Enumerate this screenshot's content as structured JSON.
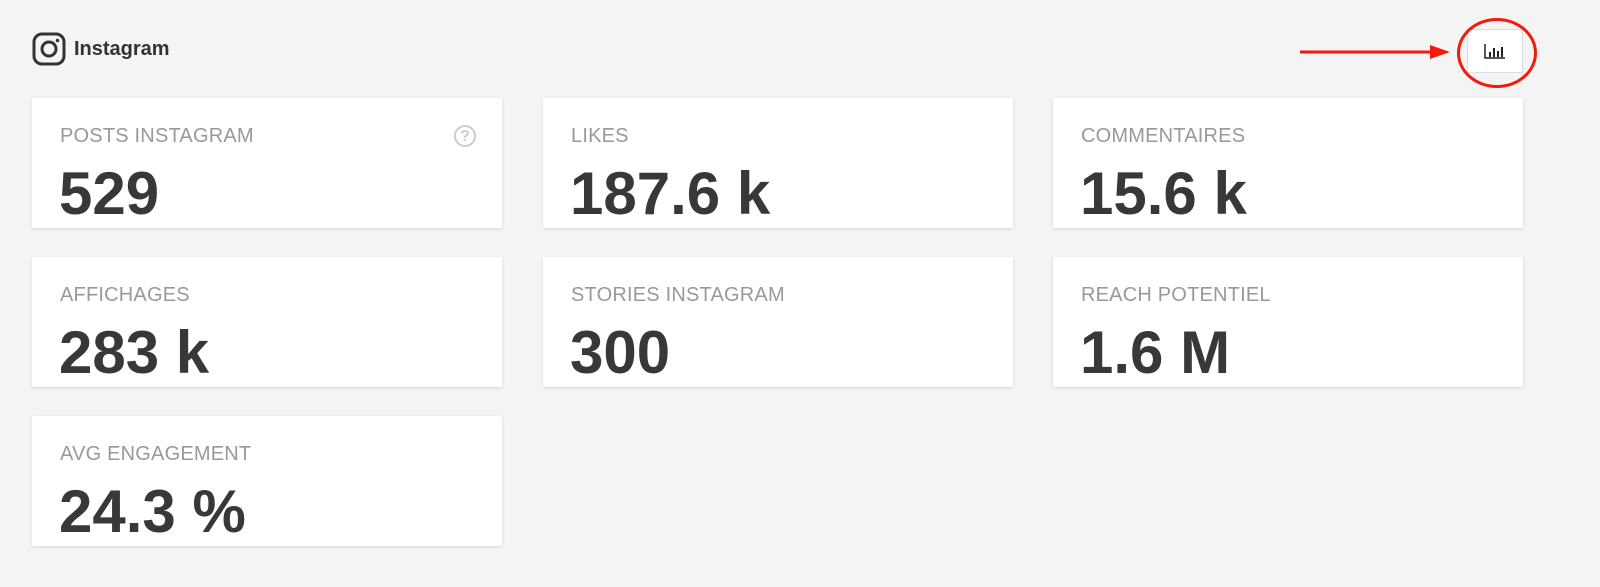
{
  "header": {
    "title": "Instagram",
    "icon": "instagram-icon"
  },
  "toolbar": {
    "chart_button_icon": "bar-chart-icon"
  },
  "annotation": {
    "color": "#f21a0c"
  },
  "cards": [
    {
      "label": "POSTS INSTAGRAM",
      "value": "529",
      "help": "?"
    },
    {
      "label": "LIKES",
      "value": "187.6 k"
    },
    {
      "label": "COMMENTAIRES",
      "value": "15.6 k"
    },
    {
      "label": "AFFICHAGES",
      "value": "283 k"
    },
    {
      "label": "STORIES INSTAGRAM",
      "value": "300"
    },
    {
      "label": "REACH POTENTIEL",
      "value": "1.6 M"
    },
    {
      "label": "AVG ENGAGEMENT",
      "value": "24.3 %"
    }
  ]
}
